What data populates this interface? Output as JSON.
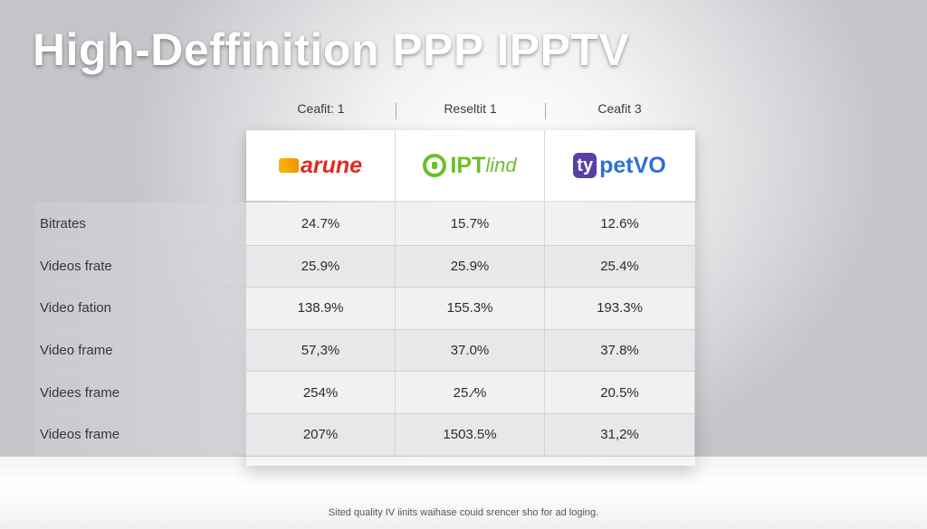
{
  "title": "High-Deffinition PPP IPPTV",
  "columns": [
    {
      "header": "Ceafit: 1",
      "logo_text": "arune",
      "logo_icon": "flag-icon"
    },
    {
      "header": "Reseltit 1",
      "logo_text": "IPT",
      "logo_text_thin": "lind",
      "logo_icon": "ring-icon"
    },
    {
      "header": "Ceafit 3",
      "logo_badge": "ty",
      "logo_text": "petVO",
      "logo_icon": "badge-icon"
    }
  ],
  "rows": [
    {
      "label": "Bitrates",
      "values": [
        "24.7%",
        "15.7%",
        "12.6%"
      ]
    },
    {
      "label": "Videos frate",
      "values": [
        "25.9%",
        "25.9%",
        "25.4%"
      ]
    },
    {
      "label": "Video fation",
      "values": [
        "138.9%",
        "155.3%",
        "193.3%"
      ]
    },
    {
      "label": "Video frame",
      "values": [
        "57,3%",
        "37.0%",
        "37.8%"
      ]
    },
    {
      "label": "Videes frame",
      "values": [
        "254%",
        "25.⁄%",
        "20.5%"
      ]
    },
    {
      "label": "Videos frame",
      "values": [
        "207%",
        "1503.5%",
        "31,2%"
      ]
    }
  ],
  "footer": "Sited quality IV iinits waihase couid srencer sho for ad loging.",
  "colors": {
    "logo1_red": "#e02b20",
    "logo1_mark": "#f7b500",
    "logo2_green": "#6cbf2c",
    "logo3_blue": "#2f6fd6",
    "logo3_badge": "#5b3ea8"
  }
}
